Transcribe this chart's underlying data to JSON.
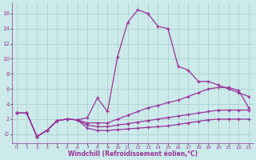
{
  "bg_color": "#cceaea",
  "line_color": "#993399",
  "grid_color": "#aacccc",
  "xlabel": "Windchill (Refroidissement éolien,°C)",
  "xlabel_color": "#993399",
  "tick_color": "#993399",
  "xlim": [
    -0.5,
    23.5
  ],
  "ylim": [
    -1.2,
    17.5
  ],
  "yticks": [
    0,
    2,
    4,
    6,
    8,
    10,
    12,
    14,
    16
  ],
  "ytick_labels": [
    "-0",
    "2",
    "4",
    "6",
    "8",
    "10",
    "12",
    "14",
    "16"
  ],
  "xticks": [
    0,
    1,
    2,
    3,
    4,
    5,
    6,
    7,
    8,
    9,
    10,
    11,
    12,
    13,
    14,
    15,
    16,
    17,
    18,
    19,
    20,
    21,
    22,
    23
  ],
  "line1_x": [
    0,
    1,
    2,
    3,
    4,
    5,
    6,
    7,
    8,
    9,
    10,
    11,
    12,
    13,
    14,
    15,
    16,
    17,
    18,
    19,
    20,
    21,
    22,
    23
  ],
  "line1_y": [
    2.8,
    2.8,
    -0.3,
    0.5,
    1.8,
    2.0,
    1.9,
    2.2,
    4.8,
    3.0,
    10.3,
    14.8,
    16.5,
    16.0,
    14.3,
    14.0,
    9.0,
    8.5,
    7.0,
    7.0,
    6.5,
    6.0,
    5.5,
    5.0
  ],
  "line2_x": [
    0,
    1,
    2,
    3,
    4,
    5,
    6,
    7,
    8,
    9,
    10,
    11,
    12,
    13,
    14,
    15,
    16,
    17,
    18,
    19,
    20,
    21,
    22,
    23
  ],
  "line2_y": [
    2.8,
    2.8,
    -0.3,
    0.5,
    1.8,
    2.0,
    1.9,
    1.5,
    1.5,
    1.5,
    2.0,
    2.5,
    3.0,
    3.5,
    3.8,
    4.2,
    4.5,
    5.0,
    5.5,
    6.0,
    6.2,
    6.2,
    5.8,
    3.5
  ],
  "line3_x": [
    0,
    1,
    2,
    3,
    4,
    5,
    6,
    7,
    8,
    9,
    10,
    11,
    12,
    13,
    14,
    15,
    16,
    17,
    18,
    19,
    20,
    21,
    22,
    23
  ],
  "line3_y": [
    2.8,
    2.8,
    -0.3,
    0.5,
    1.8,
    2.0,
    1.9,
    1.2,
    1.0,
    1.0,
    1.2,
    1.4,
    1.6,
    1.8,
    2.0,
    2.2,
    2.4,
    2.6,
    2.8,
    3.0,
    3.2,
    3.2,
    3.2,
    3.2
  ],
  "line4_x": [
    0,
    1,
    2,
    3,
    4,
    5,
    6,
    7,
    8,
    9,
    10,
    11,
    12,
    13,
    14,
    15,
    16,
    17,
    18,
    19,
    20,
    21,
    22,
    23
  ],
  "line4_y": [
    2.8,
    2.8,
    -0.3,
    0.5,
    1.8,
    2.0,
    1.9,
    0.8,
    0.5,
    0.5,
    0.6,
    0.7,
    0.8,
    0.9,
    1.0,
    1.1,
    1.3,
    1.5,
    1.7,
    1.9,
    2.0,
    2.0,
    2.0,
    2.0
  ]
}
